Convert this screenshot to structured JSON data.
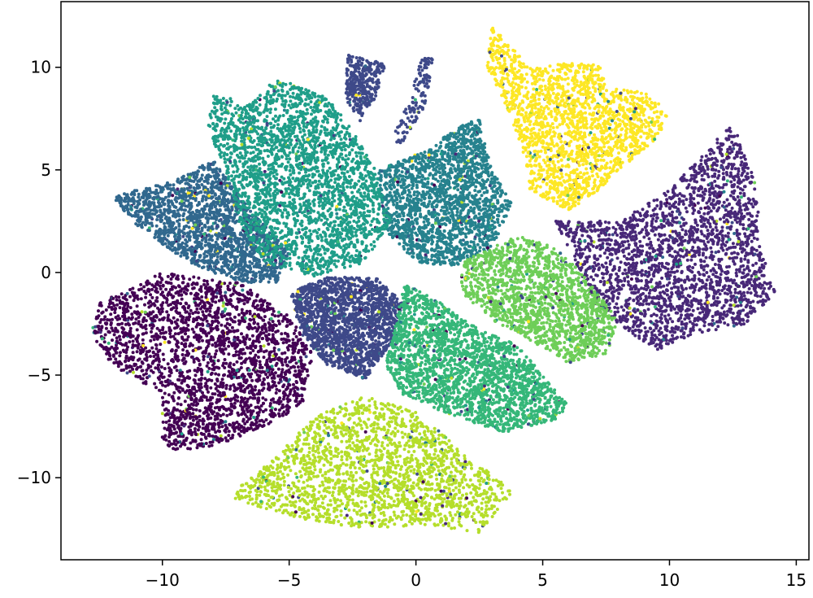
{
  "chart_data": {
    "type": "scatter",
    "title": "",
    "xlabel": "",
    "ylabel": "",
    "xlim": [
      -14,
      15.5
    ],
    "ylim": [
      -14,
      13.2
    ],
    "x_ticks": [
      -10,
      -5,
      0,
      5,
      10,
      15
    ],
    "y_ticks": [
      -10,
      -5,
      0,
      5,
      10
    ],
    "x_tick_labels": [
      "−10",
      "−5",
      "0",
      "5",
      "10",
      "15"
    ],
    "y_tick_labels": [
      "−10",
      "−5",
      "0",
      "5",
      "10"
    ],
    "grid": false,
    "legend": "none",
    "colormap": "viridis",
    "series": [
      {
        "color": "#440154",
        "approx_points": 2400,
        "region": [
          [
            -12.5,
            -1.5
          ],
          [
            -10,
            0
          ],
          [
            -7,
            -0.5
          ],
          [
            -5,
            -2
          ],
          [
            -4,
            -4
          ],
          [
            -4.5,
            -6.5
          ],
          [
            -6,
            -7.5
          ],
          [
            -8,
            -8.5
          ],
          [
            -10,
            -8.7
          ],
          [
            -10,
            -6
          ],
          [
            -12,
            -4.5
          ],
          [
            -12.8,
            -3
          ]
        ]
      },
      {
        "color": "#482878",
        "approx_points": 2400,
        "region": [
          [
            5.5,
            2.5
          ],
          [
            8,
            2.5
          ],
          [
            10,
            4
          ],
          [
            11.5,
            6
          ],
          [
            12.5,
            7.3
          ],
          [
            13.5,
            4
          ],
          [
            13.5,
            1.5
          ],
          [
            14.2,
            -1
          ],
          [
            13,
            -2.5
          ],
          [
            11,
            -3
          ],
          [
            10,
            -3.5
          ],
          [
            9.5,
            -3.8
          ],
          [
            8.5,
            -3
          ],
          [
            7,
            -1.5
          ],
          [
            6.3,
            0.5
          ]
        ]
      },
      {
        "color": "#3e4989",
        "approx_points": 1700,
        "region": [
          [
            -5,
            -1
          ],
          [
            -3.5,
            -0.2
          ],
          [
            -1.5,
            -0.3
          ],
          [
            -0.5,
            -1.5
          ],
          [
            -1,
            -3.5
          ],
          [
            -2,
            -5.2
          ],
          [
            -3.5,
            -4.5
          ],
          [
            -4.5,
            -3
          ]
        ]
      },
      {
        "color": "#3e4989",
        "approx_points": 320,
        "region": [
          [
            -2.7,
            10.6
          ],
          [
            -1.2,
            10.2
          ],
          [
            -1.6,
            8.5
          ],
          [
            -2.2,
            7.4
          ],
          [
            -2.8,
            8.5
          ]
        ]
      },
      {
        "color": "#3e4989",
        "approx_points": 120,
        "region": [
          [
            0.2,
            10.6
          ],
          [
            0.7,
            10.4
          ],
          [
            0.4,
            8.2
          ],
          [
            -0.6,
            6.2
          ],
          [
            -1,
            6.6
          ],
          [
            -0.2,
            8.5
          ]
        ]
      },
      {
        "color": "#31688e",
        "approx_points": 1800,
        "region": [
          [
            -12,
            3.7
          ],
          [
            -9.5,
            4.5
          ],
          [
            -8,
            5.5
          ],
          [
            -6.5,
            3
          ],
          [
            -5,
            1
          ],
          [
            -5.5,
            -0.5
          ],
          [
            -7,
            -0.5
          ],
          [
            -9,
            0.5
          ],
          [
            -11,
            2.3
          ]
        ]
      },
      {
        "color": "#26828e",
        "approx_points": 1900,
        "region": [
          [
            -1.5,
            5
          ],
          [
            0.5,
            6
          ],
          [
            1.5,
            7
          ],
          [
            2.5,
            7.5
          ],
          [
            3,
            5
          ],
          [
            3.8,
            3.3
          ],
          [
            3,
            1.2
          ],
          [
            1.5,
            0.3
          ],
          [
            0,
            0.5
          ],
          [
            -1.2,
            2
          ]
        ]
      },
      {
        "color": "#1f9e89",
        "approx_points": 2600,
        "region": [
          [
            -8,
            8.7
          ],
          [
            -6.5,
            8.2
          ],
          [
            -5.5,
            9.6
          ],
          [
            -4.5,
            9
          ],
          [
            -3.5,
            8.5
          ],
          [
            -2.5,
            7
          ],
          [
            -1.6,
            5
          ],
          [
            -1,
            2.5
          ],
          [
            -2,
            0.5
          ],
          [
            -4,
            -0.2
          ],
          [
            -6,
            0.5
          ],
          [
            -7,
            2.5
          ],
          [
            -7.5,
            5
          ],
          [
            -8.2,
            7
          ]
        ]
      },
      {
        "color": "#35b779",
        "approx_points": 2200,
        "region": [
          [
            -0.5,
            -0.5
          ],
          [
            1,
            -1.5
          ],
          [
            2.5,
            -2.8
          ],
          [
            4,
            -3.5
          ],
          [
            5,
            -5
          ],
          [
            6,
            -6.5
          ],
          [
            5.5,
            -7.2
          ],
          [
            3.5,
            -7.8
          ],
          [
            1.5,
            -7
          ],
          [
            -0.5,
            -6
          ],
          [
            -1.2,
            -4.5
          ],
          [
            -0.8,
            -2.5
          ]
        ]
      },
      {
        "color": "#6ece58",
        "approx_points": 1600,
        "region": [
          [
            1.8,
            0.5
          ],
          [
            4,
            1.8
          ],
          [
            5.5,
            1.2
          ],
          [
            6.5,
            0
          ],
          [
            7.5,
            -1.5
          ],
          [
            8,
            -2.5
          ],
          [
            7.5,
            -4
          ],
          [
            6,
            -4.4
          ],
          [
            4.5,
            -3.3
          ],
          [
            3,
            -2.3
          ],
          [
            1.8,
            -1
          ]
        ]
      },
      {
        "color": "#b5de2b",
        "approx_points": 2000,
        "region": [
          [
            -7,
            -10.5
          ],
          [
            -5.5,
            -9
          ],
          [
            -4,
            -7
          ],
          [
            -2,
            -6
          ],
          [
            0,
            -6.8
          ],
          [
            1,
            -7.8
          ],
          [
            2,
            -9
          ],
          [
            3,
            -9.8
          ],
          [
            3.8,
            -10.7
          ],
          [
            2.5,
            -12.7
          ],
          [
            0.5,
            -12.3
          ],
          [
            -2,
            -12.5
          ],
          [
            -4.5,
            -12
          ],
          [
            -6,
            -11.5
          ],
          [
            -7.2,
            -11
          ]
        ]
      },
      {
        "color": "#fde725",
        "approx_points": 1900,
        "region": [
          [
            3,
            12
          ],
          [
            4.5,
            10
          ],
          [
            6,
            10.2
          ],
          [
            7.3,
            10.1
          ],
          [
            7.5,
            9
          ],
          [
            9,
            8.8
          ],
          [
            10,
            7.8
          ],
          [
            9.5,
            6.5
          ],
          [
            8,
            5
          ],
          [
            7.2,
            4
          ],
          [
            6,
            3
          ],
          [
            4.5,
            4
          ],
          [
            4.2,
            6
          ],
          [
            3.6,
            8
          ],
          [
            2.8,
            10
          ]
        ]
      }
    ]
  }
}
